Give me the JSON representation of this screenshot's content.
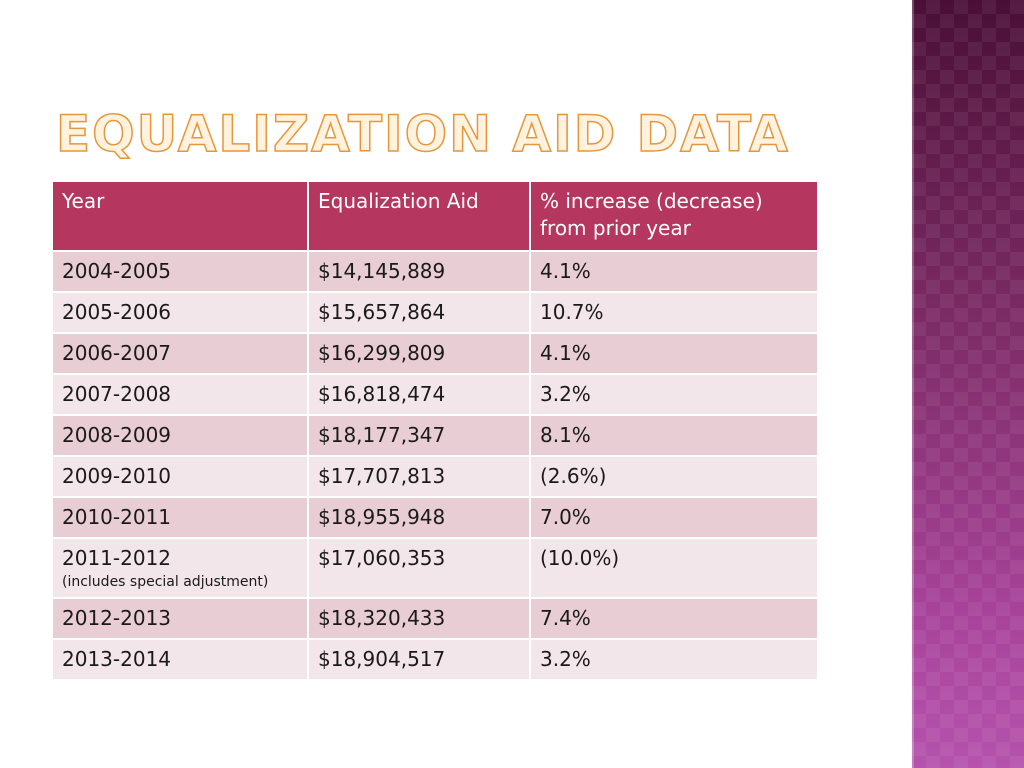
{
  "slide": {
    "title": "Equalization Aid Data"
  },
  "table": {
    "headers": [
      "Year",
      "Equalization Aid",
      "% increase (decrease) from prior year"
    ],
    "rows": [
      {
        "year": "2004-2005",
        "aid": "$14,145,889",
        "change": "4.1%",
        "note": ""
      },
      {
        "year": "2005-2006",
        "aid": "$15,657,864",
        "change": "10.7%",
        "note": ""
      },
      {
        "year": "2006-2007",
        "aid": "$16,299,809",
        "change": "4.1%",
        "note": ""
      },
      {
        "year": "2007-2008",
        "aid": "$16,818,474",
        "change": "3.2%",
        "note": ""
      },
      {
        "year": "2008-2009",
        "aid": "$18,177,347",
        "change": "8.1%",
        "note": ""
      },
      {
        "year": "2009-2010",
        "aid": "$17,707,813",
        "change": "(2.6%)",
        "note": ""
      },
      {
        "year": "2010-2011",
        "aid": "$18,955,948",
        "change": "7.0%",
        "note": ""
      },
      {
        "year": "2011-2012",
        "aid": "$17,060,353",
        "change": "(10.0%)",
        "note": "(includes special adjustment)"
      },
      {
        "year": "2012-2013",
        "aid": "$18,320,433",
        "change": "7.4%",
        "note": ""
      },
      {
        "year": "2013-2014",
        "aid": "$18,904,517",
        "change": "3.2%",
        "note": ""
      }
    ]
  },
  "colors": {
    "header_bg": "#b5365f",
    "row_odd": "#e8cdd5",
    "row_even": "#f3e6ea",
    "title_outline": "#e8963a",
    "side_panel": "#7a2a63"
  }
}
